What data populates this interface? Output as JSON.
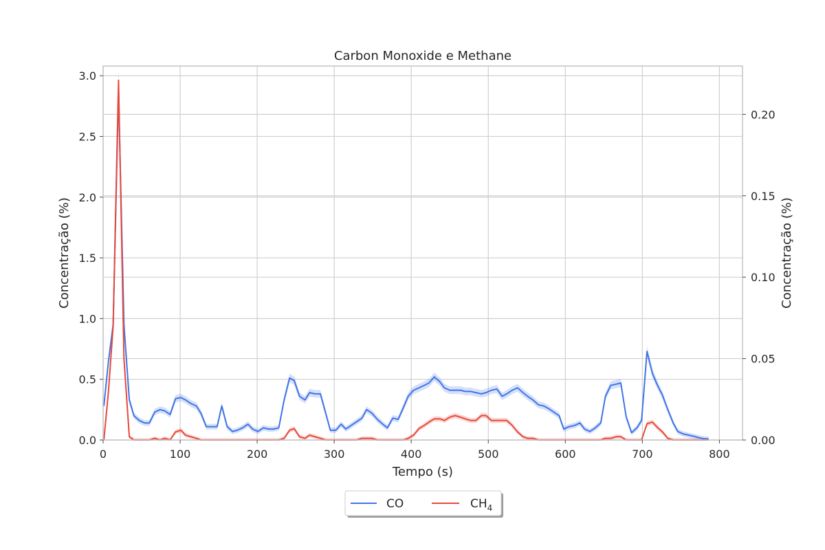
{
  "chart_data": {
    "type": "line",
    "title": "Carbon Monoxide e Methane",
    "xlabel": "Tempo (s)",
    "ylabel_left": "Concentração (%)",
    "ylabel_right": "Concentração (%)",
    "xlim": [
      0,
      830
    ],
    "ylim_left": [
      0,
      3.08
    ],
    "ylim_right": [
      0,
      0.2297
    ],
    "xticks": [
      "0",
      "100",
      "200",
      "300",
      "400",
      "500",
      "600",
      "700",
      "800"
    ],
    "yticks_left": [
      "0.0",
      "0.5",
      "1.0",
      "1.5",
      "2.0",
      "2.5",
      "3.0"
    ],
    "yticks_right": [
      "0.00",
      "0.05",
      "0.10",
      "0.15",
      "0.20"
    ],
    "grid": true,
    "legend": {
      "placement": "bottom-center",
      "ncol": 2
    },
    "colors": {
      "co": "#3f74e6",
      "ch4": "#e8473a",
      "grid": "#cfcfcf",
      "spine": "#c4c4c4"
    },
    "series": [
      {
        "name": "CO",
        "axis": "left",
        "x": [
          1,
          7,
          13,
          20,
          27,
          34,
          40,
          47,
          54,
          60,
          67,
          74,
          80,
          87,
          94,
          101,
          107,
          114,
          121,
          127,
          134,
          141,
          148,
          154,
          161,
          168,
          174,
          181,
          188,
          194,
          201,
          208,
          215,
          221,
          228,
          235,
          242,
          248,
          255,
          262,
          268,
          275,
          282,
          289,
          295,
          302,
          309,
          315,
          322,
          329,
          336,
          342,
          349,
          356,
          363,
          369,
          376,
          383,
          390,
          396,
          403,
          410,
          417,
          423,
          430,
          437,
          443,
          450,
          457,
          464,
          470,
          477,
          484,
          491,
          497,
          504,
          511,
          518,
          524,
          531,
          538,
          545,
          551,
          558,
          565,
          572,
          578,
          585,
          592,
          598,
          605,
          612,
          619,
          625,
          632,
          639,
          646,
          652,
          659,
          666,
          672,
          679,
          686,
          693,
          699,
          706,
          713,
          719,
          726,
          733,
          740,
          746,
          753,
          760,
          767,
          773,
          780,
          786
        ],
        "values": [
          0.28,
          0.65,
          0.95,
          2.87,
          0.95,
          0.33,
          0.2,
          0.16,
          0.14,
          0.14,
          0.23,
          0.25,
          0.24,
          0.21,
          0.34,
          0.35,
          0.33,
          0.3,
          0.28,
          0.22,
          0.11,
          0.11,
          0.11,
          0.28,
          0.11,
          0.07,
          0.08,
          0.1,
          0.13,
          0.09,
          0.07,
          0.1,
          0.09,
          0.09,
          0.1,
          0.33,
          0.51,
          0.49,
          0.36,
          0.33,
          0.39,
          0.38,
          0.38,
          0.22,
          0.08,
          0.08,
          0.13,
          0.09,
          0.12,
          0.15,
          0.18,
          0.25,
          0.22,
          0.17,
          0.13,
          0.1,
          0.18,
          0.17,
          0.27,
          0.36,
          0.41,
          0.43,
          0.45,
          0.47,
          0.52,
          0.48,
          0.43,
          0.41,
          0.41,
          0.41,
          0.4,
          0.4,
          0.39,
          0.38,
          0.39,
          0.41,
          0.42,
          0.36,
          0.38,
          0.41,
          0.43,
          0.39,
          0.36,
          0.33,
          0.29,
          0.28,
          0.26,
          0.23,
          0.2,
          0.09,
          0.11,
          0.12,
          0.14,
          0.09,
          0.07,
          0.1,
          0.14,
          0.36,
          0.45,
          0.46,
          0.47,
          0.19,
          0.06,
          0.1,
          0.16,
          0.73,
          0.55,
          0.46,
          0.37,
          0.25,
          0.14,
          0.07,
          0.05,
          0.04,
          0.03,
          0.02,
          0.01,
          0.01
        ]
      },
      {
        "name": "CH4",
        "axis": "right",
        "x": [
          1,
          7,
          13,
          20,
          27,
          34,
          40,
          47,
          54,
          60,
          67,
          74,
          80,
          87,
          94,
          101,
          107,
          114,
          121,
          127,
          134,
          141,
          148,
          154,
          161,
          168,
          174,
          181,
          188,
          194,
          201,
          208,
          215,
          221,
          228,
          235,
          242,
          248,
          255,
          262,
          268,
          275,
          282,
          289,
          295,
          302,
          309,
          315,
          322,
          329,
          336,
          342,
          349,
          356,
          363,
          369,
          376,
          383,
          390,
          396,
          403,
          410,
          417,
          423,
          430,
          437,
          443,
          450,
          457,
          464,
          470,
          477,
          484,
          491,
          497,
          504,
          511,
          518,
          524,
          531,
          538,
          545,
          551,
          558,
          565,
          572,
          578,
          585,
          592,
          598,
          605,
          612,
          619,
          625,
          632,
          639,
          646,
          652,
          659,
          666,
          672,
          679,
          686,
          693,
          699,
          706,
          713,
          719,
          726,
          733,
          740,
          746,
          753,
          760,
          767,
          773,
          780,
          786
        ],
        "values": [
          0.0,
          0.03,
          0.07,
          0.221,
          0.05,
          0.002,
          0.0,
          0.0,
          0.0,
          0.0,
          0.001,
          0.0,
          0.001,
          0.0,
          0.005,
          0.006,
          0.003,
          0.002,
          0.001,
          0.0,
          0.0,
          0.0,
          0.0,
          0.0,
          0.0,
          0.0,
          0.0,
          0.0,
          0.0,
          0.0,
          0.0,
          0.0,
          0.0,
          0.0,
          0.0,
          0.001,
          0.006,
          0.007,
          0.002,
          0.001,
          0.003,
          0.002,
          0.001,
          0.0,
          0.0,
          0.0,
          0.0,
          0.0,
          0.0,
          0.0,
          0.001,
          0.001,
          0.001,
          0.0,
          0.0,
          0.0,
          0.0,
          0.0,
          0.0,
          0.001,
          0.003,
          0.007,
          0.009,
          0.011,
          0.013,
          0.013,
          0.012,
          0.014,
          0.015,
          0.014,
          0.013,
          0.012,
          0.012,
          0.015,
          0.015,
          0.012,
          0.012,
          0.012,
          0.012,
          0.009,
          0.005,
          0.002,
          0.001,
          0.001,
          0.0,
          0.0,
          0.0,
          0.0,
          0.0,
          0.0,
          0.0,
          0.0,
          0.0,
          0.0,
          0.0,
          0.0,
          0.0,
          0.001,
          0.001,
          0.002,
          0.002,
          0.0,
          0.0,
          0.0,
          0.0,
          0.01,
          0.011,
          0.008,
          0.005,
          0.001,
          0.0,
          0.0,
          0.0,
          0.0,
          0.0,
          0.0,
          0.0,
          0.0
        ]
      }
    ],
    "legend_entries": [
      {
        "label": "CO",
        "sub": ""
      },
      {
        "label": "CH",
        "sub": "4"
      }
    ]
  }
}
